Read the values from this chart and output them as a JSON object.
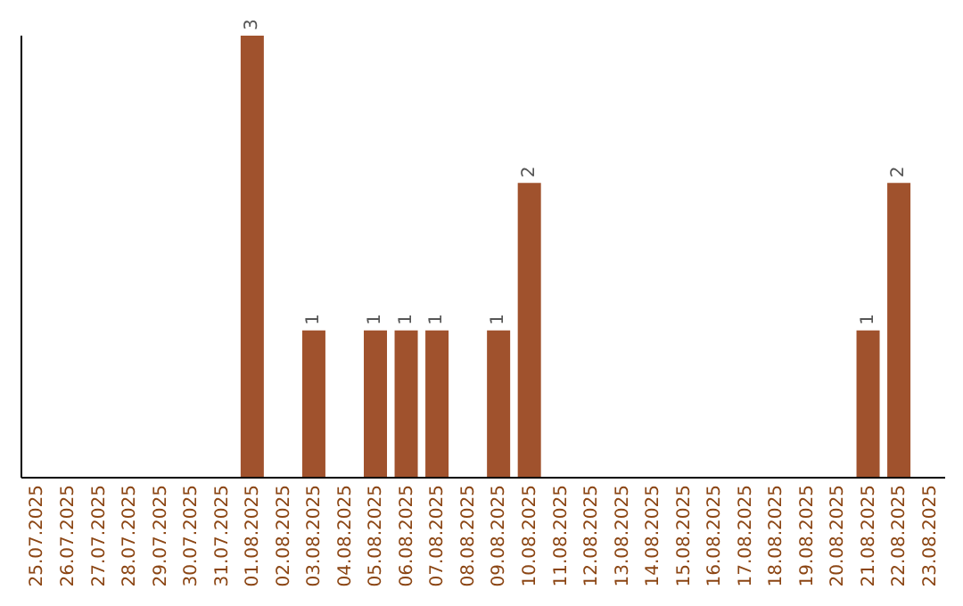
{
  "chart_data": {
    "type": "bar",
    "categories": [
      "25.07.2025",
      "26.07.2025",
      "27.07.2025",
      "28.07.2025",
      "29.07.2025",
      "30.07.2025",
      "31.07.2025",
      "01.08.2025",
      "02.08.2025",
      "03.08.2025",
      "04.08.2025",
      "05.08.2025",
      "06.08.2025",
      "07.08.2025",
      "08.08.2025",
      "09.08.2025",
      "10.08.2025",
      "11.08.2025",
      "12.08.2025",
      "13.08.2025",
      "14.08.2025",
      "15.08.2025",
      "16.08.2025",
      "17.08.2025",
      "18.08.2025",
      "19.08.2025",
      "20.08.2025",
      "21.08.2025",
      "22.08.2025",
      "23.08.2025"
    ],
    "values": [
      0,
      0,
      0,
      0,
      0,
      0,
      0,
      3,
      0,
      1,
      0,
      1,
      1,
      1,
      0,
      1,
      2,
      0,
      0,
      0,
      0,
      0,
      0,
      0,
      0,
      0,
      0,
      1,
      2,
      0
    ],
    "value_labels": [
      null,
      null,
      null,
      null,
      null,
      null,
      null,
      "3",
      null,
      "1",
      null,
      "1",
      "1",
      "1",
      null,
      "1",
      "2",
      null,
      null,
      null,
      null,
      null,
      null,
      null,
      null,
      null,
      null,
      "1",
      "2",
      null
    ],
    "color": "#a0522d",
    "ylim": [
      0,
      3
    ],
    "tick_labels": "x"
  }
}
